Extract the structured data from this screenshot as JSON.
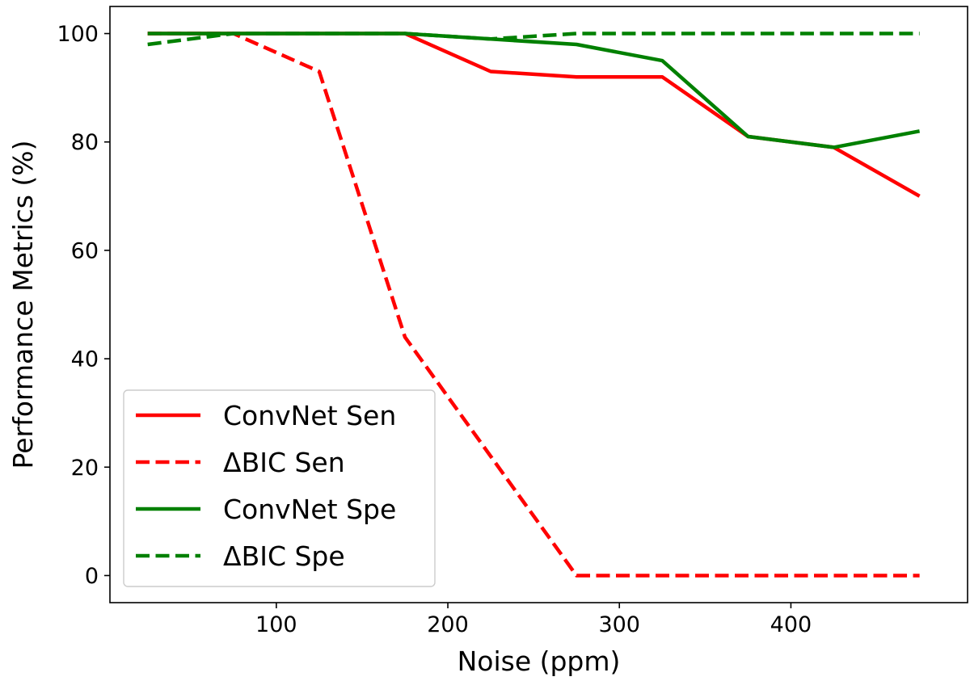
{
  "chart_data": {
    "type": "line",
    "title": "",
    "xlabel": "Noise (ppm)",
    "ylabel": "Performance Metrics (%)",
    "xlim": [
      3,
      503
    ],
    "ylim": [
      -5,
      105
    ],
    "xticks": [
      100,
      200,
      300,
      400
    ],
    "yticks": [
      0,
      20,
      40,
      60,
      80,
      100
    ],
    "grid": false,
    "legend_position": "lower-left",
    "x": [
      25,
      75,
      125,
      175,
      225,
      275,
      325,
      375,
      425,
      475
    ],
    "series": [
      {
        "name": "ConvNet Sen",
        "color": "#ff0000",
        "style": "solid",
        "values": [
          100,
          100,
          100,
          100,
          93,
          92,
          92,
          81,
          79,
          70
        ]
      },
      {
        "name": "ΔBIC Sen",
        "color": "#ff0000",
        "style": "dashed",
        "values": [
          100,
          100,
          93,
          44,
          22,
          0,
          0,
          0,
          0,
          0
        ]
      },
      {
        "name": "ConvNet Spe",
        "color": "#008000",
        "style": "solid",
        "values": [
          100,
          100,
          100,
          100,
          99,
          98,
          95,
          81,
          79,
          82
        ]
      },
      {
        "name": "ΔBIC Spe",
        "color": "#008000",
        "style": "dashed",
        "values": [
          98,
          100,
          100,
          100,
          99,
          100,
          100,
          100,
          100,
          100
        ]
      }
    ]
  }
}
